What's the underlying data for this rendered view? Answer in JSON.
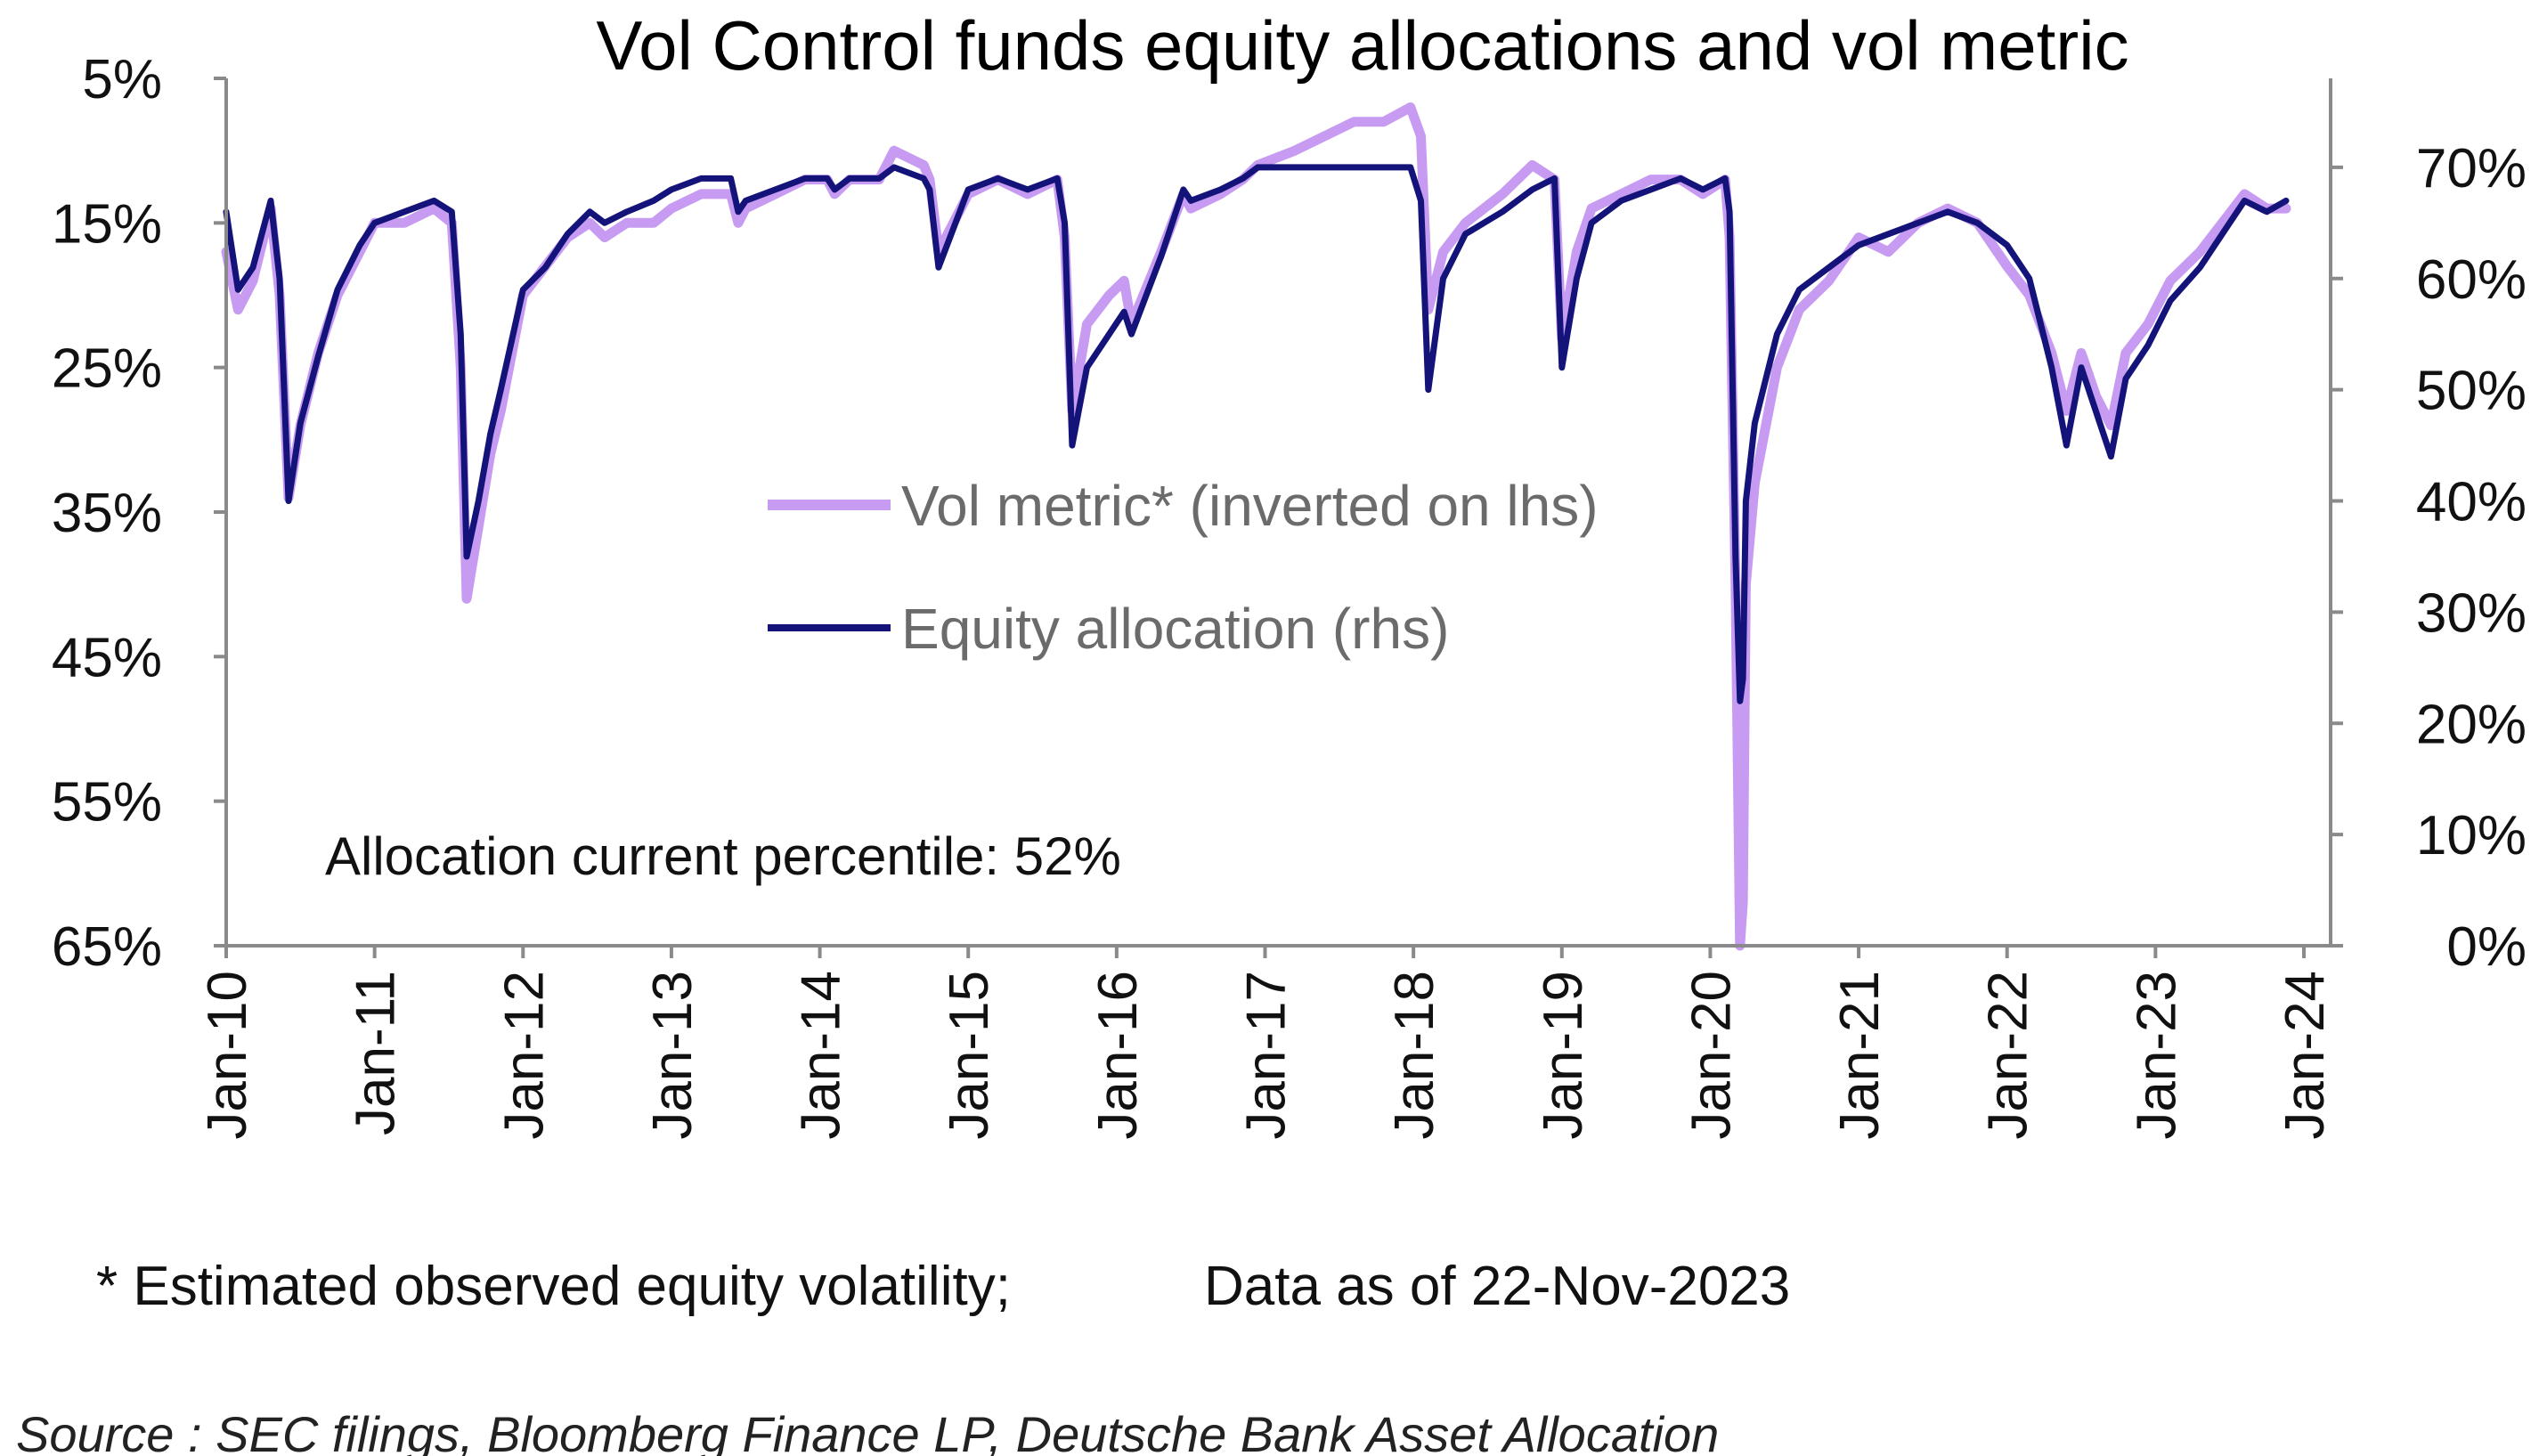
{
  "chart_data": {
    "type": "line",
    "title": "Vol Control funds equity allocations and vol metric",
    "colors": {
      "vol_metric": "#c79bf2",
      "equity_allocation": "#13137a",
      "axis": "#8a8a8a"
    },
    "x_ticks": [
      "Jan-10",
      "Jan-11",
      "Jan-12",
      "Jan-13",
      "Jan-14",
      "Jan-15",
      "Jan-16",
      "Jan-17",
      "Jan-18",
      "Jan-19",
      "Jan-20",
      "Jan-21",
      "Jan-22",
      "Jan-23",
      "Jan-24"
    ],
    "left_axis": {
      "ticks": [
        "5%",
        "15%",
        "25%",
        "35%",
        "45%",
        "55%",
        "65%"
      ],
      "ylim": [
        5,
        65
      ],
      "inverted": true
    },
    "right_axis": {
      "ticks": [
        "0%",
        "10%",
        "20%",
        "30%",
        "40%",
        "50%",
        "60%",
        "70%"
      ],
      "ylim": [
        0,
        78
      ]
    },
    "legend_placement": "center",
    "series": [
      {
        "name": "Vol metric* (inverted on lhs)",
        "axis": "left",
        "x": [
          2010.0,
          2010.08,
          2010.18,
          2010.3,
          2010.36,
          2010.42,
          2010.5,
          2010.62,
          2010.75,
          2010.9,
          2011.0,
          2011.2,
          2011.4,
          2011.52,
          2011.58,
          2011.62,
          2011.7,
          2011.78,
          2011.85,
          2012.0,
          2012.15,
          2012.3,
          2012.45,
          2012.55,
          2012.7,
          2012.88,
          2013.0,
          2013.2,
          2013.4,
          2013.45,
          2013.5,
          2013.7,
          2013.9,
          2014.05,
          2014.1,
          2014.2,
          2014.4,
          2014.5,
          2014.7,
          2014.74,
          2014.8,
          2015.0,
          2015.2,
          2015.4,
          2015.6,
          2015.65,
          2015.7,
          2015.8,
          2015.95,
          2016.05,
          2016.1,
          2016.3,
          2016.45,
          2016.5,
          2016.7,
          2016.85,
          2016.95,
          2017.2,
          2017.4,
          2017.6,
          2017.8,
          2017.98,
          2018.05,
          2018.1,
          2018.2,
          2018.35,
          2018.6,
          2018.8,
          2018.95,
          2019.0,
          2019.1,
          2019.2,
          2019.4,
          2019.6,
          2019.8,
          2019.95,
          2020.1,
          2020.13,
          2020.17,
          2020.2,
          2020.22,
          2020.24,
          2020.3,
          2020.45,
          2020.6,
          2020.8,
          2021.0,
          2021.2,
          2021.4,
          2021.6,
          2021.8,
          2022.0,
          2022.15,
          2022.3,
          2022.4,
          2022.5,
          2022.6,
          2022.7,
          2022.8,
          2022.95,
          2023.1,
          2023.3,
          2023.45,
          2023.6,
          2023.75,
          2023.88
        ],
        "values": [
          17,
          21,
          19,
          14,
          20,
          34,
          29,
          24,
          20,
          17,
          15,
          15,
          14,
          15,
          25,
          41,
          36,
          31,
          28,
          20,
          18,
          16,
          15,
          16,
          15,
          15,
          14,
          13,
          13,
          15,
          14,
          13,
          12,
          12,
          13,
          12,
          12,
          10,
          11,
          12,
          17,
          13,
          12,
          13,
          12,
          16,
          28,
          22,
          20,
          19,
          22,
          17,
          13,
          14,
          13,
          12,
          11,
          10,
          9,
          8,
          8,
          7,
          9,
          21,
          17,
          15,
          13,
          11,
          12,
          23,
          17,
          14,
          13,
          12,
          12,
          13,
          12,
          16,
          40,
          65,
          62,
          40,
          33,
          25,
          21,
          19,
          16,
          17,
          15,
          14,
          15,
          18,
          20,
          24,
          28,
          24,
          27,
          29,
          24,
          22,
          19,
          17,
          15,
          13,
          14,
          14
        ]
      },
      {
        "name": "Equity allocation (rhs)",
        "axis": "right",
        "x": [
          2010.0,
          2010.08,
          2010.18,
          2010.3,
          2010.36,
          2010.42,
          2010.5,
          2010.62,
          2010.75,
          2010.9,
          2011.0,
          2011.2,
          2011.4,
          2011.52,
          2011.58,
          2011.62,
          2011.7,
          2011.78,
          2011.85,
          2012.0,
          2012.15,
          2012.3,
          2012.45,
          2012.55,
          2012.7,
          2012.88,
          2013.0,
          2013.2,
          2013.4,
          2013.45,
          2013.5,
          2013.7,
          2013.9,
          2014.05,
          2014.1,
          2014.2,
          2014.4,
          2014.5,
          2014.7,
          2014.74,
          2014.8,
          2015.0,
          2015.2,
          2015.4,
          2015.6,
          2015.65,
          2015.7,
          2015.8,
          2015.95,
          2016.05,
          2016.1,
          2016.3,
          2016.45,
          2016.5,
          2016.7,
          2016.85,
          2016.95,
          2017.2,
          2017.4,
          2017.6,
          2017.8,
          2017.98,
          2018.05,
          2018.1,
          2018.2,
          2018.35,
          2018.6,
          2018.8,
          2018.95,
          2019.0,
          2019.1,
          2019.2,
          2019.4,
          2019.6,
          2019.8,
          2019.95,
          2020.1,
          2020.13,
          2020.17,
          2020.2,
          2020.22,
          2020.24,
          2020.3,
          2020.45,
          2020.6,
          2020.8,
          2021.0,
          2021.2,
          2021.4,
          2021.6,
          2021.8,
          2022.0,
          2022.15,
          2022.3,
          2022.4,
          2022.5,
          2022.6,
          2022.7,
          2022.8,
          2022.95,
          2023.1,
          2023.3,
          2023.45,
          2023.6,
          2023.75,
          2023.88
        ],
        "values": [
          66,
          59,
          61,
          67,
          60,
          40,
          47,
          53,
          59,
          63,
          65,
          66,
          67,
          66,
          55,
          35,
          40,
          46,
          50,
          59,
          61,
          64,
          66,
          65,
          66,
          67,
          68,
          69,
          69,
          66,
          67,
          68,
          69,
          69,
          68,
          69,
          69,
          70,
          69,
          68,
          61,
          68,
          69,
          68,
          69,
          65,
          45,
          52,
          55,
          57,
          55,
          62,
          68,
          67,
          68,
          69,
          70,
          70,
          70,
          70,
          70,
          70,
          67,
          50,
          60,
          64,
          66,
          68,
          69,
          52,
          60,
          65,
          67,
          68,
          69,
          68,
          69,
          66,
          35,
          22,
          24,
          40,
          47,
          55,
          59,
          61,
          63,
          64,
          65,
          66,
          65,
          63,
          60,
          52,
          45,
          52,
          48,
          44,
          51,
          54,
          58,
          61,
          64,
          67,
          66,
          67
        ]
      }
    ],
    "annotation": "Allocation current percentile: 52%",
    "footnote": "* Estimated observed equity volatility;",
    "data_date": "Data as of 22-Nov-2023",
    "source": "Source : SEC filings, Bloomberg Finance LP, Deutsche Bank Asset Allocation"
  }
}
